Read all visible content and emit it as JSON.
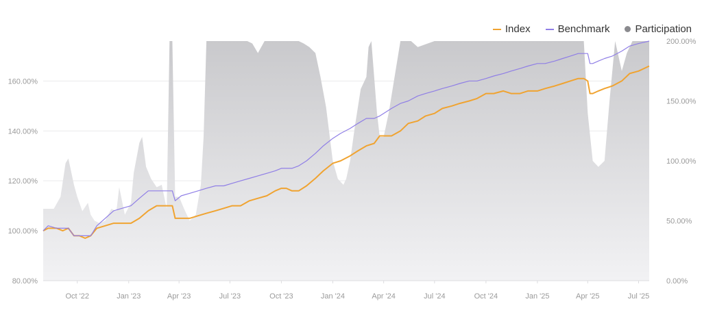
{
  "legend": {
    "index_label": "Index",
    "benchmark_label": "Benchmark",
    "participation_label": "Participation"
  },
  "colors": {
    "index": "#f0a330",
    "benchmark": "#8f7ee6",
    "participation": "#8a8a8e",
    "area_fill": "#cfcfd2",
    "grid": "#e9e9ec",
    "tick_text": "#9a9a9a"
  },
  "chart_data": {
    "type": "line",
    "title": "",
    "xlabel": "",
    "ylabel": "",
    "y_axis_left": {
      "ticks": [
        80,
        100,
        120,
        140,
        160
      ],
      "tick_labels": [
        "80.00%",
        "100.00%",
        "120.00%",
        "140.00%",
        "160.00%"
      ],
      "range": [
        80,
        176
      ]
    },
    "y_axis_right": {
      "ticks": [
        0,
        50,
        100,
        150,
        200
      ],
      "tick_labels": [
        "0.00%",
        "50.00%",
        "100.00%",
        "150.00%",
        "200.00%"
      ],
      "range": [
        0,
        200
      ]
    },
    "x_axis": {
      "range": [
        "2022-08-01",
        "2025-07-20"
      ],
      "tick_labels": [
        "Oct '22",
        "Jan '23",
        "Apr '23",
        "Jul '23",
        "Oct '23",
        "Jan '24",
        "Apr '24",
        "Jul '24",
        "Oct '24",
        "Jan '25",
        "Apr '25",
        "Jul '25"
      ],
      "tick_dates": [
        "2022-10-01",
        "2023-01-01",
        "2023-04-01",
        "2023-07-01",
        "2023-10-01",
        "2024-01-01",
        "2024-04-01",
        "2024-07-01",
        "2024-10-01",
        "2025-01-01",
        "2025-04-01",
        "2025-07-01"
      ]
    },
    "grid": true,
    "legend_position": "top-right",
    "series": [
      {
        "name": "Index",
        "axis": "left",
        "x": [
          "2022-08-01",
          "2022-08-10",
          "2022-08-25",
          "2022-09-05",
          "2022-09-15",
          "2022-09-25",
          "2022-10-05",
          "2022-10-15",
          "2022-10-25",
          "2022-11-05",
          "2022-11-20",
          "2022-12-05",
          "2022-12-20",
          "2023-01-05",
          "2023-01-20",
          "2023-02-05",
          "2023-02-20",
          "2023-03-05",
          "2023-03-15",
          "2023-03-20",
          "2023-03-25",
          "2023-04-05",
          "2023-04-20",
          "2023-05-05",
          "2023-05-20",
          "2023-06-05",
          "2023-06-20",
          "2023-07-05",
          "2023-07-20",
          "2023-08-05",
          "2023-08-20",
          "2023-09-05",
          "2023-09-20",
          "2023-10-01",
          "2023-10-10",
          "2023-10-20",
          "2023-11-01",
          "2023-11-15",
          "2023-12-01",
          "2023-12-15",
          "2024-01-01",
          "2024-01-15",
          "2024-02-01",
          "2024-02-15",
          "2024-03-01",
          "2024-03-15",
          "2024-03-25",
          "2024-04-01",
          "2024-04-15",
          "2024-05-01",
          "2024-05-15",
          "2024-06-01",
          "2024-06-15",
          "2024-07-01",
          "2024-07-15",
          "2024-08-01",
          "2024-08-15",
          "2024-09-01",
          "2024-09-15",
          "2024-10-01",
          "2024-10-15",
          "2024-11-01",
          "2024-11-15",
          "2024-12-01",
          "2024-12-15",
          "2025-01-01",
          "2025-01-15",
          "2025-02-01",
          "2025-02-15",
          "2025-03-01",
          "2025-03-15",
          "2025-03-25",
          "2025-04-01",
          "2025-04-05",
          "2025-04-10",
          "2025-04-20",
          "2025-05-01",
          "2025-05-15",
          "2025-06-01",
          "2025-06-15",
          "2025-07-01",
          "2025-07-20"
        ],
        "values": [
          100,
          101,
          101,
          100,
          101,
          98,
          98,
          97,
          98,
          101,
          102,
          103,
          103,
          103,
          105,
          108,
          110,
          110,
          110,
          110,
          105,
          105,
          105,
          106,
          107,
          108,
          109,
          110,
          110,
          112,
          113,
          114,
          116,
          117,
          117,
          116,
          116,
          118,
          121,
          124,
          127,
          128,
          130,
          132,
          134,
          135,
          138,
          138,
          138,
          140,
          143,
          144,
          146,
          147,
          149,
          150,
          151,
          152,
          153,
          155,
          155,
          156,
          155,
          155,
          156,
          156,
          157,
          158,
          159,
          160,
          161,
          161,
          160,
          155,
          155,
          156,
          157,
          158,
          160,
          163,
          164,
          166
        ]
      },
      {
        "name": "Benchmark",
        "axis": "left",
        "x": [
          "2022-08-01",
          "2022-08-10",
          "2022-08-25",
          "2022-09-05",
          "2022-09-15",
          "2022-09-25",
          "2022-10-05",
          "2022-10-15",
          "2022-10-25",
          "2022-11-05",
          "2022-11-20",
          "2022-12-05",
          "2022-12-20",
          "2023-01-05",
          "2023-01-20",
          "2023-02-05",
          "2023-02-20",
          "2023-03-05",
          "2023-03-15",
          "2023-03-20",
          "2023-03-25",
          "2023-04-05",
          "2023-04-20",
          "2023-05-05",
          "2023-05-20",
          "2023-06-05",
          "2023-06-20",
          "2023-07-05",
          "2023-07-20",
          "2023-08-05",
          "2023-08-20",
          "2023-09-05",
          "2023-09-20",
          "2023-10-01",
          "2023-10-10",
          "2023-10-20",
          "2023-11-01",
          "2023-11-15",
          "2023-12-01",
          "2023-12-15",
          "2024-01-01",
          "2024-01-15",
          "2024-02-01",
          "2024-02-15",
          "2024-03-01",
          "2024-03-15",
          "2024-03-25",
          "2024-04-01",
          "2024-04-15",
          "2024-05-01",
          "2024-05-15",
          "2024-06-01",
          "2024-06-15",
          "2024-07-01",
          "2024-07-15",
          "2024-08-01",
          "2024-08-15",
          "2024-09-01",
          "2024-09-15",
          "2024-10-01",
          "2024-10-15",
          "2024-11-01",
          "2024-11-15",
          "2024-12-01",
          "2024-12-15",
          "2025-01-01",
          "2025-01-15",
          "2025-02-01",
          "2025-02-15",
          "2025-03-01",
          "2025-03-15",
          "2025-03-25",
          "2025-04-01",
          "2025-04-05",
          "2025-04-10",
          "2025-04-20",
          "2025-05-01",
          "2025-05-15",
          "2025-06-01",
          "2025-06-15",
          "2025-07-01",
          "2025-07-20"
        ],
        "values": [
          100,
          102,
          101,
          101,
          101,
          98,
          98,
          98,
          98,
          102,
          105,
          108,
          109,
          110,
          113,
          116,
          116,
          116,
          116,
          116,
          112,
          114,
          115,
          116,
          117,
          118,
          118,
          119,
          120,
          121,
          122,
          123,
          124,
          125,
          125,
          125,
          126,
          128,
          131,
          134,
          137,
          139,
          141,
          143,
          145,
          145,
          146,
          147,
          149,
          151,
          152,
          154,
          155,
          156,
          157,
          158,
          159,
          160,
          160,
          161,
          162,
          163,
          164,
          165,
          166,
          167,
          167,
          168,
          169,
          170,
          171,
          171,
          171,
          167,
          167,
          168,
          169,
          170,
          172,
          174,
          175,
          176
        ]
      },
      {
        "name": "Participation",
        "axis": "right",
        "type": "area",
        "x": [
          "2022-08-01",
          "2022-08-20",
          "2022-09-01",
          "2022-09-10",
          "2022-09-15",
          "2022-09-25",
          "2022-10-01",
          "2022-10-10",
          "2022-10-20",
          "2022-10-25",
          "2022-11-01",
          "2022-11-10",
          "2022-11-20",
          "2022-11-25",
          "2022-12-01",
          "2022-12-10",
          "2022-12-15",
          "2022-12-25",
          "2023-01-05",
          "2023-01-10",
          "2023-01-20",
          "2023-01-25",
          "2023-02-01",
          "2023-02-10",
          "2023-02-20",
          "2023-03-01",
          "2023-03-10",
          "2023-03-15",
          "2023-03-20",
          "2023-03-25",
          "2023-04-01",
          "2023-04-10",
          "2023-04-20",
          "2023-05-01",
          "2023-05-10",
          "2023-05-15",
          "2023-05-20",
          "2023-05-25",
          "2023-06-01",
          "2023-06-10",
          "2023-06-20",
          "2023-07-01",
          "2023-08-01",
          "2023-08-10",
          "2023-08-20",
          "2023-09-01",
          "2023-09-10",
          "2023-09-20",
          "2023-10-01",
          "2023-10-10",
          "2023-10-20",
          "2023-11-01",
          "2023-11-10",
          "2023-11-20",
          "2023-12-01",
          "2023-12-10",
          "2023-12-20",
          "2024-01-01",
          "2024-01-10",
          "2024-01-20",
          "2024-01-25",
          "2024-02-01",
          "2024-02-10",
          "2024-02-20",
          "2024-03-01",
          "2024-03-05",
          "2024-03-10",
          "2024-03-20",
          "2024-03-25",
          "2024-04-01",
          "2024-04-10",
          "2024-05-01",
          "2024-05-10",
          "2024-05-20",
          "2024-06-01",
          "2024-07-01",
          "2024-10-01",
          "2025-01-01",
          "2025-03-01",
          "2025-03-20",
          "2025-03-25",
          "2025-04-01",
          "2025-04-10",
          "2025-04-20",
          "2025-05-01",
          "2025-05-10",
          "2025-05-20",
          "2025-06-01",
          "2025-06-10",
          "2025-06-20",
          "2025-07-01",
          "2025-07-20"
        ],
        "values": [
          60,
          60,
          70,
          98,
          102,
          80,
          70,
          58,
          65,
          55,
          50,
          48,
          50,
          55,
          60,
          58,
          78,
          55,
          65,
          90,
          115,
          120,
          95,
          85,
          78,
          80,
          60,
          200,
          200,
          70,
          70,
          60,
          50,
          55,
          80,
          120,
          200,
          200,
          200,
          200,
          200,
          200,
          200,
          198,
          190,
          200,
          200,
          200,
          200,
          200,
          200,
          200,
          198,
          195,
          190,
          170,
          145,
          100,
          85,
          80,
          85,
          100,
          130,
          160,
          170,
          195,
          200,
          140,
          120,
          120,
          140,
          200,
          200,
          200,
          195,
          200,
          200,
          200,
          200,
          200,
          200,
          140,
          100,
          95,
          100,
          150,
          200,
          175,
          190,
          200,
          200,
          200
        ]
      }
    ]
  }
}
